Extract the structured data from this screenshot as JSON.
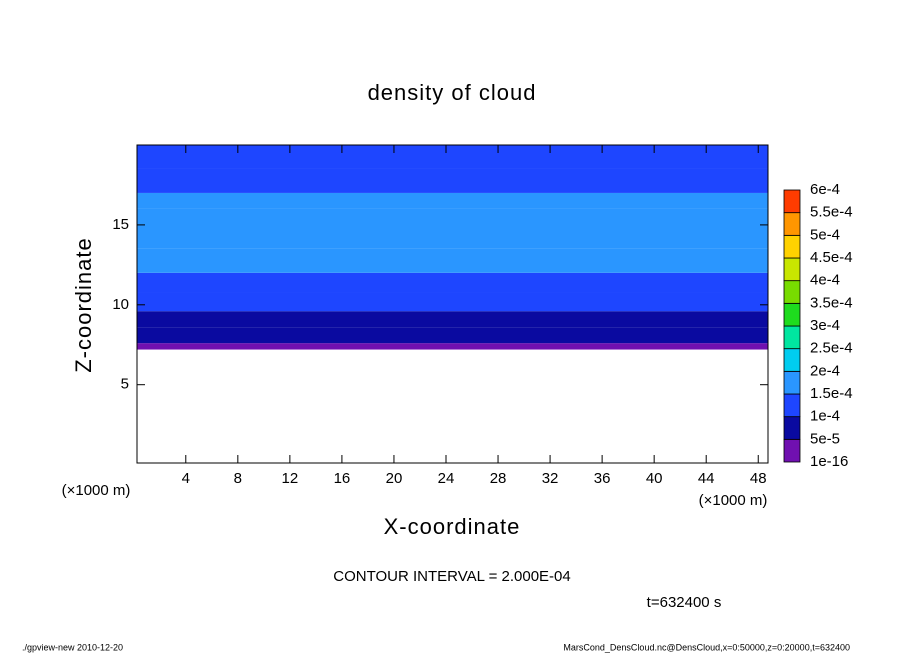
{
  "chart_data": {
    "type": "contour",
    "title": "density of cloud",
    "x_label": "X-coordinate",
    "y_label": "Z-coordinate",
    "x_unit": "(×1000 m)",
    "y_unit": "(×1000 m)",
    "xlim": [
      0.25,
      48.75
    ],
    "ylim": [
      0.1,
      20
    ],
    "xticks": [
      4,
      8,
      12,
      16,
      20,
      24,
      28,
      32,
      36,
      40,
      44,
      48
    ],
    "yticks": [
      5,
      10,
      15
    ],
    "z_edges": [
      7.2,
      7.6,
      8.6,
      9.6,
      10.8,
      12,
      13.5,
      16,
      17,
      18.5,
      20
    ],
    "density": [
      3e-05,
      6e-05,
      8e-05,
      0.00011,
      0.00013,
      0.00016,
      0.00015,
      0.00016,
      0.00013,
      0.00012
    ],
    "levels": [
      {
        "value": 1e-16,
        "label": "1e-16"
      },
      {
        "value": 5e-05,
        "label": "5e-5"
      },
      {
        "value": 0.0001,
        "label": "1e-4"
      },
      {
        "value": 0.00015,
        "label": "1.5e-4"
      },
      {
        "value": 0.0002,
        "label": "2e-4"
      },
      {
        "value": 0.00025,
        "label": "2.5e-4"
      },
      {
        "value": 0.0003,
        "label": "3e-4"
      },
      {
        "value": 0.00035,
        "label": "3.5e-4"
      },
      {
        "value": 0.0004,
        "label": "4e-4"
      },
      {
        "value": 0.00045,
        "label": "4.5e-4"
      },
      {
        "value": 0.0005,
        "label": "5e-4"
      },
      {
        "value": 0.00055,
        "label": "5.5e-4"
      },
      {
        "value": 0.0006,
        "label": "6e-4"
      }
    ],
    "level_colors": [
      "#7010b0",
      "#0a0aa0",
      "#1e46ff",
      "#2a96ff",
      "#00cdf0",
      "#00e6a0",
      "#1edc1e",
      "#78dc00",
      "#c8e600",
      "#ffd200",
      "#ff9600",
      "#ff3c00",
      "#ff8c8c"
    ],
    "annotation": "CONTOUR INTERVAL = 2.000E-04",
    "time_label": "t=632400 s",
    "footer_left": "./gpview-new  2010-12-20",
    "footer_right": "MarsCond_DensCloud.nc@DensCloud,x=0:50000,z=0:20000,t=632400"
  }
}
